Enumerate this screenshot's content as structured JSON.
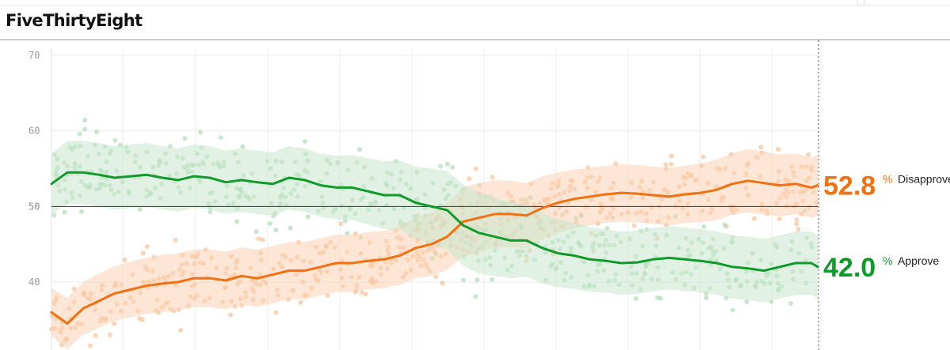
{
  "header": {
    "brand": "FiveThirtyEight"
  },
  "chart_data": {
    "type": "line",
    "title": "",
    "xlabel": "",
    "ylabel": "",
    "ylim": [
      31,
      72
    ],
    "yticks": [
      40,
      50,
      60,
      70
    ],
    "reference_line": 50,
    "grid": true,
    "x": [
      0,
      20,
      40,
      60,
      80,
      100,
      120,
      140,
      160,
      180,
      200,
      220,
      240,
      260,
      280,
      300,
      320,
      340,
      360,
      380,
      400,
      420,
      440,
      460,
      480,
      500,
      520,
      540,
      560,
      580,
      600,
      620,
      640,
      660,
      680,
      700,
      720,
      740,
      760,
      780,
      800,
      820,
      840,
      860,
      880,
      900,
      920,
      940,
      960,
      968
    ],
    "series": [
      {
        "name": "Disapprove",
        "current_value": "52.8",
        "unit": "%",
        "color": "#f2700f",
        "band_color": "#fbd2b3",
        "dot_color": "#f7b98a",
        "values": [
          36.0,
          34.5,
          36.5,
          37.5,
          38.5,
          39.0,
          39.5,
          39.8,
          40.0,
          40.5,
          40.5,
          40.2,
          40.8,
          40.5,
          41.0,
          41.5,
          41.5,
          42.0,
          42.5,
          42.5,
          42.8,
          43.0,
          43.5,
          44.5,
          45.0,
          46.0,
          48.0,
          48.5,
          49.0,
          49.0,
          48.8,
          49.8,
          50.5,
          51.0,
          51.3,
          51.6,
          51.8,
          51.7,
          51.5,
          51.3,
          51.6,
          51.8,
          52.2,
          53.0,
          53.4,
          53.1,
          52.8,
          53.0,
          52.5,
          52.8
        ],
        "band_halfwidth": [
          3.2,
          3.4,
          3.5,
          3.6,
          3.6,
          3.7,
          3.7,
          3.8,
          3.8,
          3.8,
          3.8,
          3.8,
          3.8,
          3.8,
          3.8,
          3.8,
          3.8,
          3.8,
          3.8,
          3.8,
          3.8,
          3.8,
          3.9,
          4.0,
          4.2,
          4.4,
          4.6,
          4.6,
          4.5,
          4.4,
          4.3,
          4.2,
          4.0,
          3.9,
          3.8,
          3.8,
          3.8,
          3.8,
          3.8,
          3.8,
          3.8,
          3.9,
          4.0,
          4.1,
          4.2,
          4.2,
          4.1,
          4.0,
          4.0,
          4.0
        ]
      },
      {
        "name": "Approve",
        "current_value": "42.0",
        "unit": "%",
        "color": "#0f9a2a",
        "band_color": "#c8e8cd",
        "dot_color": "#a5d9ae",
        "values": [
          53.0,
          54.5,
          54.5,
          54.2,
          53.8,
          54.0,
          54.2,
          53.8,
          53.5,
          54.0,
          53.8,
          53.2,
          53.5,
          53.2,
          53.0,
          53.8,
          53.5,
          52.8,
          52.5,
          52.5,
          52.0,
          51.5,
          51.5,
          50.5,
          50.0,
          49.5,
          47.5,
          46.5,
          46.0,
          45.5,
          45.5,
          44.5,
          43.8,
          43.5,
          43.0,
          42.8,
          42.5,
          42.6,
          43.0,
          43.2,
          43.0,
          42.8,
          42.5,
          42.0,
          41.8,
          41.5,
          42.0,
          42.5,
          42.5,
          42.0
        ],
        "band_halfwidth": [
          4.0,
          4.2,
          4.2,
          4.2,
          4.2,
          4.2,
          4.2,
          4.2,
          4.2,
          4.2,
          4.2,
          4.2,
          4.2,
          4.2,
          4.2,
          4.2,
          4.2,
          4.2,
          4.2,
          4.3,
          4.4,
          4.5,
          4.6,
          4.8,
          5.0,
          5.2,
          5.4,
          5.4,
          5.2,
          5.0,
          4.8,
          4.7,
          4.5,
          4.4,
          4.3,
          4.2,
          4.2,
          4.2,
          4.2,
          4.2,
          4.2,
          4.2,
          4.2,
          4.2,
          4.2,
          4.2,
          4.2,
          4.2,
          4.2,
          4.2
        ]
      }
    ]
  }
}
